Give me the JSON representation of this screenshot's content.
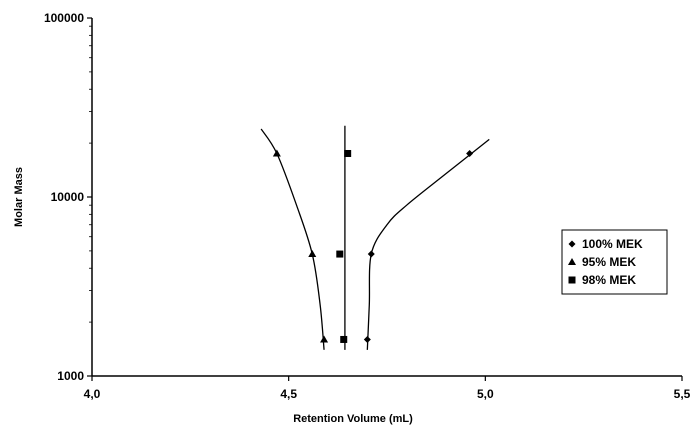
{
  "chart_data": {
    "type": "scatter",
    "xlabel": "Retention Volume (mL)",
    "ylabel": "Molar Mass",
    "xlim": [
      4.0,
      5.5
    ],
    "ylim": [
      1000,
      100000
    ],
    "yscale": "log",
    "xticks": [
      "4,0",
      "4,5",
      "5,0",
      "5,5"
    ],
    "yticks": [
      "1000",
      "10000",
      "100000"
    ],
    "grid": false,
    "legend_position": "right",
    "series": [
      {
        "name": "100% MEK",
        "marker": "diamond",
        "x": [
          4.7,
          4.71,
          4.96
        ],
        "y": [
          1600,
          4800,
          17500
        ],
        "curve_x": [
          4.7,
          4.705,
          4.71,
          4.75,
          4.8,
          4.9,
          5.01
        ],
        "curve_y": [
          1400,
          2500,
          4800,
          7000,
          9000,
          13500,
          21000
        ]
      },
      {
        "name": "95% MEK",
        "marker": "triangle",
        "x": [
          4.59,
          4.56,
          4.47
        ],
        "y": [
          1600,
          4800,
          17500
        ],
        "curve_x": [
          4.59,
          4.58,
          4.56,
          4.52,
          4.47,
          4.43
        ],
        "curve_y": [
          1400,
          2500,
          4800,
          9000,
          17500,
          24000
        ]
      },
      {
        "name": "98% MEK",
        "marker": "square",
        "x": [
          4.64,
          4.63,
          4.65
        ],
        "y": [
          1600,
          4800,
          17500
        ],
        "curve_x": [
          4.643,
          4.643
        ],
        "curve_y": [
          1400,
          25000
        ]
      }
    ]
  }
}
